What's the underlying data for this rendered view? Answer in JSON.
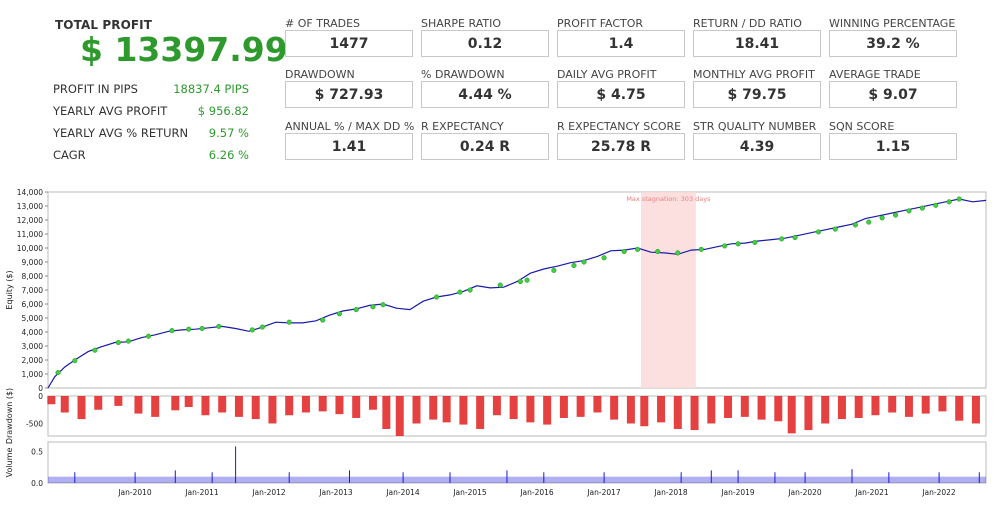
{
  "summary": {
    "total_label": "TOTAL PROFIT",
    "total_value": "$ 13397.99",
    "rows": [
      {
        "label": "PROFIT IN PIPS",
        "value": "18837.4 PIPS"
      },
      {
        "label": "YEARLY AVG PROFIT",
        "value": "$ 956.82"
      },
      {
        "label": "YEARLY AVG % RETURN",
        "value": "9.57 %"
      },
      {
        "label": "CAGR",
        "value": "6.26 %"
      }
    ]
  },
  "metrics": [
    {
      "label": "# OF TRADES",
      "value": "1477"
    },
    {
      "label": "SHARPE RATIO",
      "value": "0.12"
    },
    {
      "label": "PROFIT FACTOR",
      "value": "1.4"
    },
    {
      "label": "RETURN / DD RATIO",
      "value": "18.41"
    },
    {
      "label": "WINNING PERCENTAGE",
      "value": "39.2 %"
    },
    {
      "label": "DRAWDOWN",
      "value": "$ 727.93"
    },
    {
      "label": "% DRAWDOWN",
      "value": "4.44 %"
    },
    {
      "label": "DAILY AVG PROFIT",
      "value": "$ 4.75"
    },
    {
      "label": "MONTHLY AVG PROFIT",
      "value": "$ 79.75"
    },
    {
      "label": "AVERAGE TRADE",
      "value": "$ 9.07"
    },
    {
      "label": "ANNUAL % / MAX DD %",
      "value": "1.41"
    },
    {
      "label": "R EXPECTANCY",
      "value": "0.24 R"
    },
    {
      "label": "R EXPECTANCY SCORE",
      "value": "25.78 R"
    },
    {
      "label": "STR QUALITY NUMBER",
      "value": "4.39"
    },
    {
      "label": "SQN SCORE",
      "value": "1.15"
    }
  ],
  "chart_data": [
    {
      "type": "line",
      "ylabel": "Equity ($)",
      "ylim": [
        0,
        14000
      ],
      "yticks": [
        0,
        1000,
        2000,
        3000,
        4000,
        5000,
        6000,
        7000,
        8000,
        9000,
        10000,
        11000,
        12000,
        13000,
        14000
      ],
      "ytick_labels": [
        "0",
        "1,000",
        "2,000",
        "3,000",
        "4,000",
        "5,000",
        "6,000",
        "7,000",
        "8,000",
        "9,000",
        "10,000",
        "11,000",
        "12,000",
        "13,000",
        "14,000"
      ],
      "xlim": [
        2009.0,
        2023.0
      ],
      "xticks": [
        2010,
        2011,
        2012,
        2013,
        2014,
        2015,
        2016,
        2017,
        2018,
        2019,
        2020,
        2021,
        2022
      ],
      "xtick_labels": [
        "Jan-2010",
        "Jan-2011",
        "Jan-2012",
        "Jan-2013",
        "Jan-2014",
        "Jan-2015",
        "Jan-2016",
        "Jan-2017",
        "Jan-2018",
        "Jan-2019",
        "Jan-2020",
        "Jan-2021",
        "Jan-2022"
      ],
      "series": [
        {
          "color": "#1a1aa8",
          "x": [
            2009.0,
            2009.1,
            2009.25,
            2009.4,
            2009.6,
            2009.8,
            2010.0,
            2010.2,
            2010.4,
            2010.6,
            2010.8,
            2011.0,
            2011.2,
            2011.4,
            2011.6,
            2011.8,
            2012.0,
            2012.2,
            2012.4,
            2012.6,
            2012.8,
            2013.0,
            2013.2,
            2013.4,
            2013.6,
            2013.8,
            2014.0,
            2014.2,
            2014.4,
            2014.6,
            2014.8,
            2015.0,
            2015.2,
            2015.4,
            2015.6,
            2015.8,
            2016.0,
            2016.2,
            2016.4,
            2016.6,
            2016.8,
            2017.0,
            2017.2,
            2017.4,
            2017.6,
            2017.8,
            2018.0,
            2018.2,
            2018.4,
            2018.6,
            2018.8,
            2019.0,
            2019.2,
            2019.4,
            2019.6,
            2019.8,
            2020.0,
            2020.2,
            2020.4,
            2020.6,
            2020.8,
            2021.0,
            2021.2,
            2021.4,
            2021.6,
            2021.8,
            2022.0,
            2022.2,
            2022.4,
            2022.6,
            2022.8,
            2023.0
          ],
          "y": [
            0,
            800,
            1500,
            2000,
            2600,
            2950,
            3250,
            3300,
            3600,
            3800,
            4050,
            4150,
            4200,
            4300,
            4400,
            4250,
            4050,
            4350,
            4700,
            4650,
            4650,
            4800,
            5200,
            5500,
            5650,
            5900,
            6000,
            5700,
            5600,
            6200,
            6500,
            6650,
            6900,
            7300,
            7150,
            7200,
            7600,
            8200,
            8500,
            8700,
            8950,
            9100,
            9400,
            9800,
            9850,
            10000,
            9700,
            9650,
            9550,
            9850,
            9900,
            10100,
            10300,
            10350,
            10500,
            10600,
            10700,
            10900,
            11100,
            11300,
            11500,
            11700,
            12100,
            12300,
            12500,
            12700,
            12900,
            13100,
            13300,
            13500,
            13300,
            13397.99
          ]
        },
        {
          "color": "#3fcf3f",
          "name_note": "",
          "x": [
            2009.15,
            2009.4,
            2009.7,
            2010.05,
            2010.2,
            2010.5,
            2010.85,
            2011.1,
            2011.3,
            2011.55,
            2012.05,
            2012.2,
            2012.6,
            2013.1,
            2013.35,
            2013.6,
            2013.85,
            2014.0,
            2014.8,
            2015.15,
            2015.3,
            2015.75,
            2016.05,
            2016.15,
            2016.55,
            2016.85,
            2017.0,
            2017.3,
            2017.6,
            2017.8,
            2018.1,
            2018.4,
            2018.75,
            2019.1,
            2019.3,
            2019.55,
            2019.95,
            2020.15,
            2020.5,
            2020.75,
            2021.05,
            2021.25,
            2021.45,
            2021.65,
            2021.85,
            2022.05,
            2022.25,
            2022.45,
            2022.6
          ],
          "y": [
            1100,
            1950,
            2700,
            3250,
            3350,
            3700,
            4100,
            4200,
            4250,
            4400,
            4150,
            4350,
            4700,
            4850,
            5300,
            5600,
            5800,
            5950,
            6500,
            6850,
            7000,
            7350,
            7600,
            7700,
            8400,
            8750,
            9000,
            9300,
            9750,
            9900,
            9750,
            9650,
            9900,
            10150,
            10300,
            10400,
            10650,
            10750,
            11150,
            11350,
            11650,
            11850,
            12150,
            12350,
            12650,
            12850,
            13050,
            13300,
            13500
          ]
        }
      ],
      "annotations": [
        {
          "text": "Max stagnation: 303 days",
          "x_start": 2017.85,
          "x_end": 2018.67,
          "color": "#e88080"
        }
      ]
    },
    {
      "type": "bar",
      "ylabel": "Drawdown ($)",
      "ylim": [
        -728,
        0
      ],
      "yticks": [
        0,
        -500
      ],
      "ytick_labels": [
        "0",
        "-500"
      ],
      "color": "#e02020",
      "x": [
        2009.05,
        2009.25,
        2009.5,
        2009.75,
        2010.05,
        2010.35,
        2010.6,
        2010.9,
        2011.1,
        2011.35,
        2011.6,
        2011.85,
        2012.1,
        2012.35,
        2012.6,
        2012.85,
        2013.1,
        2013.35,
        2013.6,
        2013.85,
        2014.05,
        2014.25,
        2014.5,
        2014.75,
        2014.95,
        2015.2,
        2015.45,
        2015.7,
        2015.95,
        2016.2,
        2016.45,
        2016.7,
        2016.95,
        2017.2,
        2017.45,
        2017.7,
        2017.9,
        2018.15,
        2018.4,
        2018.65,
        2018.9,
        2019.15,
        2019.4,
        2019.65,
        2019.9,
        2020.1,
        2020.35,
        2020.6,
        2020.85,
        2021.1,
        2021.35,
        2021.6,
        2021.85,
        2022.1,
        2022.35,
        2022.6,
        2022.85
      ],
      "values": [
        -150,
        -300,
        -420,
        -250,
        -180,
        -320,
        -380,
        -260,
        -200,
        -350,
        -300,
        -380,
        -420,
        -500,
        -350,
        -300,
        -280,
        -330,
        -400,
        -250,
        -600,
        -728,
        -500,
        -430,
        -480,
        -520,
        -600,
        -350,
        -420,
        -480,
        -520,
        -400,
        -380,
        -300,
        -430,
        -500,
        -550,
        -480,
        -600,
        -620,
        -500,
        -400,
        -380,
        -430,
        -460,
        -680,
        -620,
        -500,
        -420,
        -400,
        -350,
        -300,
        -380,
        -320,
        -280,
        -450,
        -500
      ]
    },
    {
      "type": "bar",
      "ylabel": "Volume",
      "ylim": [
        0,
        0.65
      ],
      "yticks": [
        0.0,
        0.5
      ],
      "ytick_labels": [
        "0.0",
        "0.5"
      ],
      "color": "#1a1ad8",
      "baseline": 0.1,
      "spikes": [
        {
          "x": 2009.4,
          "v": 0.17
        },
        {
          "x": 2010.3,
          "v": 0.17
        },
        {
          "x": 2010.9,
          "v": 0.2
        },
        {
          "x": 2011.45,
          "v": 0.17
        },
        {
          "x": 2011.8,
          "v": 0.58
        },
        {
          "x": 2012.6,
          "v": 0.17
        },
        {
          "x": 2013.5,
          "v": 0.2
        },
        {
          "x": 2014.3,
          "v": 0.17
        },
        {
          "x": 2015.0,
          "v": 0.17
        },
        {
          "x": 2015.85,
          "v": 0.2
        },
        {
          "x": 2016.4,
          "v": 0.17
        },
        {
          "x": 2017.3,
          "v": 0.17
        },
        {
          "x": 2018.45,
          "v": 0.17
        },
        {
          "x": 2018.9,
          "v": 0.2
        },
        {
          "x": 2019.3,
          "v": 0.2
        },
        {
          "x": 2019.85,
          "v": 0.17
        },
        {
          "x": 2020.3,
          "v": 0.17
        },
        {
          "x": 2021.0,
          "v": 0.22
        },
        {
          "x": 2021.55,
          "v": 0.17
        },
        {
          "x": 2022.3,
          "v": 0.17
        },
        {
          "x": 2022.9,
          "v": 0.17
        }
      ]
    }
  ]
}
